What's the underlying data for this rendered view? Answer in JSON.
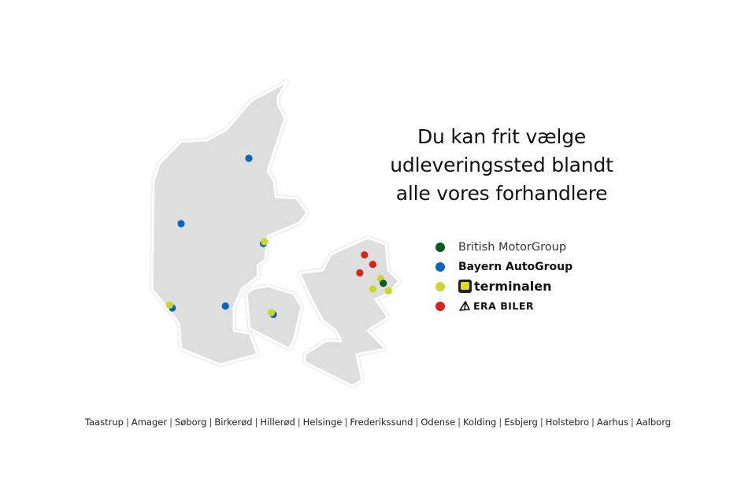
{
  "title_lines": [
    "Du kan frit vælge",
    "udleveringssted blandt",
    "alle vores forhandlere"
  ],
  "legend": [
    {
      "label": "British MotorGroup",
      "color": "#0b5a2a"
    },
    {
      "label": "Bayern AutoGroup",
      "color": "#0a66b8"
    },
    {
      "label": "terminalen",
      "color": "#c9d72a"
    },
    {
      "label": "ERA BILER",
      "color": "#d0261c"
    }
  ],
  "cities": [
    "Taastrup",
    "Amager",
    "Søborg",
    "Birkerød",
    "Hillerød",
    "Helsinge",
    "Frederikssund",
    "Odense",
    "Kolding",
    "Esbjerg",
    "Holstebro",
    "Aarhus",
    "Aalborg"
  ],
  "land_color": "#dedede",
  "dealers": [
    {
      "brand": 1,
      "lon": 9.92,
      "lat": 57.05
    },
    {
      "brand": 1,
      "lon": 8.62,
      "lat": 56.36
    },
    {
      "brand": 1,
      "lon": 10.2,
      "lat": 56.15
    },
    {
      "brand": 1,
      "lon": 8.45,
      "lat": 55.47
    },
    {
      "brand": 1,
      "lon": 9.47,
      "lat": 55.49
    },
    {
      "brand": 1,
      "lon": 10.39,
      "lat": 55.4
    },
    {
      "brand": 2,
      "lon": 10.22,
      "lat": 56.17
    },
    {
      "brand": 2,
      "lon": 8.4,
      "lat": 55.5
    },
    {
      "brand": 2,
      "lon": 10.35,
      "lat": 55.42
    },
    {
      "brand": 2,
      "lon": 12.45,
      "lat": 55.78
    },
    {
      "brand": 2,
      "lon": 12.3,
      "lat": 55.67
    },
    {
      "brand": 2,
      "lon": 12.6,
      "lat": 55.65
    },
    {
      "brand": 3,
      "lon": 12.14,
      "lat": 56.03
    },
    {
      "brand": 3,
      "lon": 12.3,
      "lat": 55.93
    },
    {
      "brand": 3,
      "lon": 12.05,
      "lat": 55.84
    },
    {
      "brand": 0,
      "lon": 12.5,
      "lat": 55.73
    }
  ]
}
